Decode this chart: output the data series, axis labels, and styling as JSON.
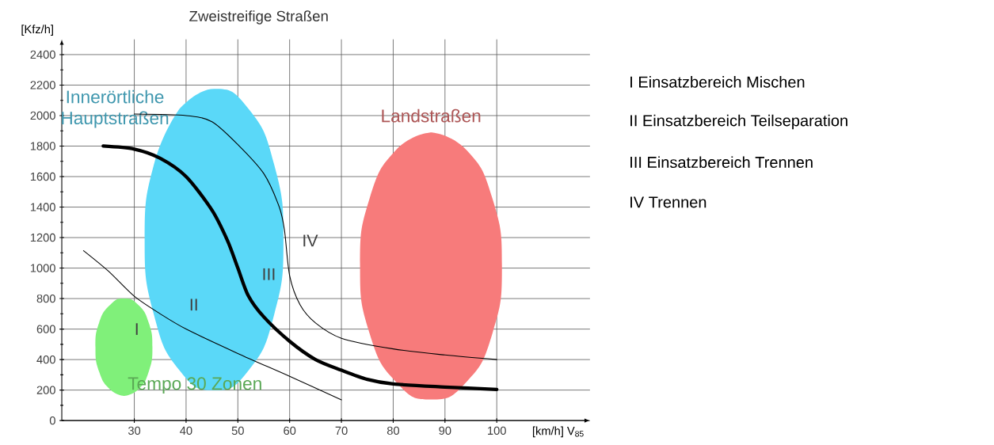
{
  "chart_data": {
    "type": "line",
    "title": "Zweistreifige Straßen",
    "xlabel": "[km/h] V$_{85}$",
    "ylabel": "[Kfz/h]",
    "xlim": [
      16,
      118
    ],
    "ylim": [
      0,
      2500
    ],
    "xticks": [
      30,
      40,
      50,
      60,
      70,
      80,
      90,
      100
    ],
    "yticks": [
      0,
      200,
      400,
      600,
      800,
      1000,
      1200,
      1400,
      1600,
      1800,
      2000,
      2200,
      2400
    ],
    "grid": true,
    "series": [
      {
        "type": "area",
        "name": "Innerörtliche Hauptstraßen",
        "color": "#5ad8f8",
        "x": [
          38.7,
          33.8,
          32.0,
          33.8,
          38.7,
          45.4,
          52.1,
          57.0,
          58.8,
          57.0,
          52.1,
          45.4,
          38.7
        ],
        "values": [
          2043,
          1681,
          1187,
          693,
          331,
          199,
          331,
          693,
          1187,
          1681,
          2043,
          2175,
          2043
        ]
      },
      {
        "type": "area",
        "name": "Landstraßen",
        "color": "#f77b7b",
        "x": [
          87.3,
          80.5,
          75.4,
          73.6,
          75.4,
          80.5,
          87.3,
          94.2,
          99.2,
          101.0,
          99.2,
          94.2,
          87.3
        ],
        "values": [
          1890,
          1773,
          1452,
          1014,
          576,
          255,
          138,
          255,
          576,
          1014,
          1452,
          1773,
          1890
        ]
      },
      {
        "type": "area",
        "name": "Tempo 30 Zonen",
        "color": "#80f07a",
        "x": [
          28.0,
          30.8,
          32.8,
          33.5,
          32.8,
          30.8,
          28.0,
          25.3,
          23.2,
          22.5,
          23.2,
          25.3,
          28.0
        ],
        "values": [
          162,
          205,
          321,
          481,
          641,
          757,
          800,
          757,
          641,
          481,
          321,
          205,
          162
        ]
      },
      {
        "color": "#000000",
        "x": [
          24,
          30,
          35,
          40,
          45,
          48,
          50,
          52,
          55,
          60,
          65,
          70,
          75,
          80,
          90,
          100
        ],
        "values": [
          1800,
          1780,
          1720,
          1600,
          1380,
          1180,
          1000,
          820,
          680,
          520,
          400,
          330,
          270,
          240,
          220,
          204
        ]
      },
      {
        "color": "#000000",
        "x": [
          30,
          40,
          45,
          50,
          55,
          58,
          59,
          60,
          62,
          65,
          70,
          80,
          90,
          100
        ],
        "values": [
          2010,
          2000,
          1960,
          1810,
          1620,
          1400,
          1250,
          950,
          760,
          640,
          540,
          470,
          430,
          400
        ]
      },
      {
        "color": "#000000",
        "x": [
          20.2,
          25,
          30,
          35,
          40,
          50,
          60,
          70
        ],
        "values": [
          1114,
          980,
          815,
          700,
          600,
          440,
          290,
          136
        ]
      }
    ],
    "annotations": [
      "I",
      "II",
      "III",
      "IV",
      "I Einsatzbereich Mischen",
      "II Einsatzbereich Teilseparation",
      "III Einsatzbereich Trennen",
      "IV Trennen"
    ]
  }
}
